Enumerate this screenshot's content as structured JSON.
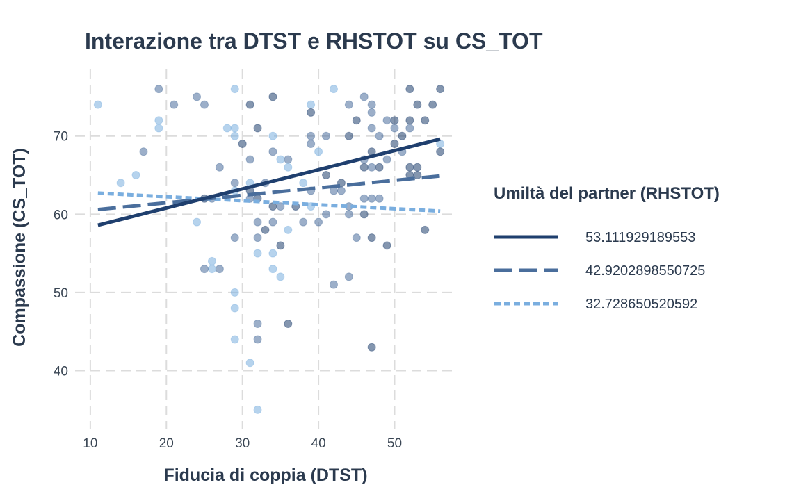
{
  "chart_data": {
    "type": "scatter",
    "title": "Interazione tra DTST e RHSTOT su CS_TOT",
    "xlabel": "Fiducia di coppia (DTST)",
    "ylabel": "Compassione (CS_TOT)",
    "xlim": [
      8,
      58
    ],
    "ylim": [
      32.5,
      78.5
    ],
    "x_ticks": [
      10,
      20,
      30,
      40,
      50
    ],
    "y_ticks": [
      40,
      50,
      60,
      70
    ],
    "grid": true,
    "legend": {
      "title": "Umiltà del partner (RHSTOT)",
      "placement": "right"
    },
    "series": [
      {
        "name": "53.111929189553",
        "color": "#1f3f6e",
        "line_style": "solid",
        "fit_line": [
          [
            11,
            58.6
          ],
          [
            56,
            69.6
          ]
        ],
        "points": [
          [
            30,
            69
          ],
          [
            31,
            74
          ],
          [
            34,
            75
          ],
          [
            32,
            71
          ],
          [
            31,
            63
          ],
          [
            32,
            62
          ],
          [
            33,
            58
          ],
          [
            34,
            61
          ],
          [
            35,
            56
          ],
          [
            36,
            46
          ],
          [
            37,
            61
          ],
          [
            39,
            73
          ],
          [
            41,
            65
          ],
          [
            43,
            64
          ],
          [
            44,
            70
          ],
          [
            45,
            72
          ],
          [
            46,
            66
          ],
          [
            46,
            60
          ],
          [
            47,
            68
          ],
          [
            47,
            57
          ],
          [
            47,
            43
          ],
          [
            48,
            66
          ],
          [
            49,
            56
          ],
          [
            50,
            72
          ],
          [
            50,
            69
          ],
          [
            51,
            70
          ],
          [
            52,
            76
          ],
          [
            52,
            72
          ],
          [
            52,
            66
          ],
          [
            52,
            65
          ],
          [
            53,
            74
          ],
          [
            53,
            66
          ],
          [
            53,
            65
          ],
          [
            54,
            72
          ],
          [
            54,
            58
          ],
          [
            55,
            74
          ],
          [
            56,
            68
          ],
          [
            56,
            76
          ],
          [
            25,
            62
          ]
        ]
      },
      {
        "name": "42.9202898550725",
        "color": "#4a6e9c",
        "line_style": "dashed",
        "fit_line": [
          [
            11,
            60.6
          ],
          [
            56,
            64.9
          ]
        ],
        "points": [
          [
            17,
            68
          ],
          [
            19,
            76
          ],
          [
            21,
            74
          ],
          [
            24,
            75
          ],
          [
            25,
            74
          ],
          [
            25,
            53
          ],
          [
            27,
            66
          ],
          [
            27,
            53
          ],
          [
            29,
            64
          ],
          [
            29,
            57
          ],
          [
            31,
            67
          ],
          [
            31,
            62
          ],
          [
            32,
            59
          ],
          [
            32,
            57
          ],
          [
            32,
            46
          ],
          [
            32,
            44
          ],
          [
            34,
            68
          ],
          [
            34,
            59
          ],
          [
            35,
            61
          ],
          [
            36,
            67
          ],
          [
            38,
            59
          ],
          [
            39,
            70
          ],
          [
            39,
            69
          ],
          [
            39,
            63
          ],
          [
            40,
            59
          ],
          [
            41,
            70
          ],
          [
            41,
            60
          ],
          [
            42,
            63
          ],
          [
            42,
            51
          ],
          [
            43,
            63
          ],
          [
            44,
            74
          ],
          [
            44,
            61
          ],
          [
            44,
            60
          ],
          [
            44,
            52
          ],
          [
            45,
            57
          ],
          [
            46,
            75
          ],
          [
            46,
            67
          ],
          [
            46,
            62
          ],
          [
            47,
            74
          ],
          [
            47,
            73
          ],
          [
            47,
            71
          ],
          [
            47,
            66
          ],
          [
            47,
            62
          ],
          [
            48,
            70
          ],
          [
            48,
            62
          ],
          [
            49,
            72
          ],
          [
            49,
            67
          ],
          [
            50,
            71
          ],
          [
            51,
            68
          ],
          [
            52,
            71
          ],
          [
            26,
            62
          ],
          [
            33,
            64
          ]
        ]
      },
      {
        "name": "32.728650520592",
        "color": "#7aaedf",
        "line_style": "dotted",
        "fit_line": [
          [
            11,
            62.7
          ],
          [
            56,
            60.4
          ]
        ],
        "points": [
          [
            11,
            74
          ],
          [
            14,
            64
          ],
          [
            16,
            65
          ],
          [
            19,
            72
          ],
          [
            19,
            71
          ],
          [
            24,
            59
          ],
          [
            26,
            54
          ],
          [
            26,
            53
          ],
          [
            28,
            71
          ],
          [
            29,
            76
          ],
          [
            29,
            71
          ],
          [
            29,
            70
          ],
          [
            29,
            63
          ],
          [
            29,
            50
          ],
          [
            29,
            48
          ],
          [
            29,
            44
          ],
          [
            31,
            64
          ],
          [
            31,
            41
          ],
          [
            32,
            55
          ],
          [
            32,
            35
          ],
          [
            34,
            70
          ],
          [
            34,
            55
          ],
          [
            34,
            53
          ],
          [
            35,
            67
          ],
          [
            35,
            52
          ],
          [
            36,
            66
          ],
          [
            36,
            58
          ],
          [
            38,
            64
          ],
          [
            39,
            74
          ],
          [
            39,
            61
          ],
          [
            40,
            68
          ],
          [
            42,
            76
          ],
          [
            56,
            69
          ]
        ]
      }
    ]
  }
}
